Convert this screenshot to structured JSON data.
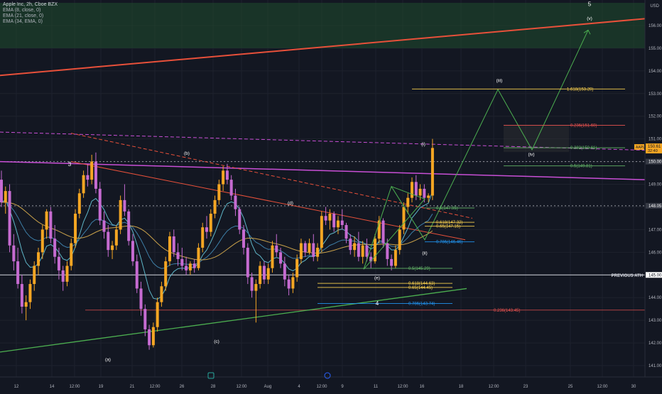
{
  "legend": {
    "symbol": "Apple Inc, 2h, Cboe BZX",
    "indicators": [
      "EMA (8, close, 0)",
      "EMA (21, close, 0)",
      "EMA (34, EMA, 0)"
    ]
  },
  "currency": "USD",
  "colors": {
    "background": "#131722",
    "up": "#f5a623",
    "down": "#c66bd1",
    "ema8": "#5fb7c9",
    "ema21": "#3e7fa8",
    "ema34": "#c9a14a",
    "resistance": "#e8503a",
    "uptrend": "#4caf50",
    "purple_line": "#c94fd6",
    "projection": "#4caf50",
    "fib_gold": "#ffd54f",
    "fib_green": "#66bb6a",
    "fib_blue": "#2196f3",
    "fib_red": "#ef5350",
    "price_badge": "#f5a623"
  },
  "chart_data": {
    "type": "candlestick",
    "symbol": "AAPL",
    "interval": "2h",
    "ylim": [
      140.5,
      157.0
    ],
    "y_ticks": [
      "141.00",
      "142.00",
      "143.00",
      "144.00",
      "145.00",
      "146.00",
      "147.00",
      "148.00",
      "149.00",
      "150.00",
      "151.00",
      "152.00",
      "153.00",
      "154.00",
      "155.00",
      "156.00"
    ],
    "x_ticks": [
      "12",
      "14",
      "12:00",
      "19",
      "21",
      "12:00",
      "26",
      "28",
      "12:00",
      "Aug",
      "4",
      "12:00",
      "9",
      "11",
      "12:00",
      "16",
      "18",
      "12:00",
      "23",
      "25",
      "12:00",
      "30"
    ],
    "price_labels": [
      {
        "text": "150.00",
        "value": 150.0
      },
      {
        "text": "148.05",
        "value": 148.05
      },
      {
        "text": "145.00",
        "value": 145.0
      }
    ],
    "current_price": {
      "symbol": "AAPL",
      "price": "150.61",
      "countdown": "32:40"
    },
    "wave_labels": [
      "3",
      "(a)",
      "(b)",
      "(c)",
      "(d)",
      "(e)",
      "4",
      "(i)",
      "(ii)",
      "(iii)",
      "(iv)",
      "(v)",
      "5"
    ],
    "annotations": [
      "PREVIOUS ATH"
    ],
    "fib_levels": [
      {
        "label": "1.618(153.20)",
        "value": 153.2
      },
      {
        "label": "0.236(151.60)",
        "value": 151.6
      },
      {
        "label": "0.382(150.61)",
        "value": 150.61
      },
      {
        "label": "0.5(149.81)",
        "value": 149.81
      },
      {
        "label": "0.5(147.95)",
        "value": 147.95
      },
      {
        "label": "0.618(147.32)",
        "value": 147.32
      },
      {
        "label": "0.65(147.15)",
        "value": 147.15
      },
      {
        "label": "0.786(146.46)",
        "value": 146.46
      },
      {
        "label": "0.5(145.29)",
        "value": 145.29
      },
      {
        "label": "0.618(144.63)",
        "value": 144.63
      },
      {
        "label": "0.65(144.45)",
        "value": 144.45
      },
      {
        "label": "0.786(143.74)",
        "value": 143.74
      },
      {
        "label": "0.236(143.45)",
        "value": 143.45
      }
    ],
    "candles": [
      [
        149.2,
        149.6,
        148.0,
        148.2
      ],
      [
        148.2,
        148.9,
        147.7,
        148.7
      ],
      [
        148.7,
        149.0,
        146.0,
        146.3
      ],
      [
        146.3,
        146.8,
        145.2,
        145.6
      ],
      [
        145.6,
        146.2,
        144.4,
        144.6
      ],
      [
        144.6,
        145.0,
        143.3,
        143.6
      ],
      [
        143.6,
        144.1,
        143.0,
        143.8
      ],
      [
        143.8,
        144.8,
        143.5,
        144.6
      ],
      [
        144.6,
        145.6,
        144.3,
        145.4
      ],
      [
        145.4,
        146.2,
        145.0,
        146.0
      ],
      [
        146.0,
        147.2,
        145.7,
        147.0
      ],
      [
        147.0,
        147.9,
        146.6,
        147.8
      ],
      [
        147.8,
        148.0,
        146.4,
        146.6
      ],
      [
        146.6,
        147.2,
        145.5,
        145.8
      ],
      [
        145.8,
        146.2,
        144.8,
        145.2
      ],
      [
        145.2,
        145.4,
        144.3,
        144.7
      ],
      [
        144.7,
        145.6,
        144.5,
        145.4
      ],
      [
        145.4,
        146.6,
        145.2,
        146.4
      ],
      [
        146.4,
        147.9,
        146.2,
        147.7
      ],
      [
        147.7,
        148.8,
        147.5,
        148.6
      ],
      [
        148.6,
        149.6,
        148.4,
        149.4
      ],
      [
        149.4,
        149.9,
        148.9,
        149.2
      ],
      [
        149.2,
        150.3,
        149.0,
        150.0
      ],
      [
        150.0,
        150.4,
        148.6,
        148.8
      ],
      [
        148.8,
        149.1,
        147.2,
        147.4
      ],
      [
        147.4,
        147.8,
        146.6,
        146.9
      ],
      [
        146.9,
        147.2,
        145.8,
        146.1
      ],
      [
        146.1,
        146.5,
        145.7,
        146.3
      ],
      [
        146.3,
        147.2,
        146.1,
        147.0
      ],
      [
        147.0,
        148.5,
        146.8,
        148.3
      ],
      [
        148.3,
        149.0,
        147.6,
        147.8
      ],
      [
        147.8,
        147.9,
        146.3,
        146.5
      ],
      [
        146.5,
        146.8,
        145.4,
        145.6
      ],
      [
        145.6,
        145.9,
        144.2,
        144.4
      ],
      [
        144.4,
        144.7,
        143.2,
        143.5
      ],
      [
        143.5,
        143.7,
        142.3,
        142.6
      ],
      [
        142.6,
        142.8,
        141.7,
        141.9
      ],
      [
        141.9,
        142.9,
        141.8,
        142.7
      ],
      [
        142.7,
        144.0,
        142.5,
        143.8
      ],
      [
        143.8,
        144.7,
        143.6,
        144.5
      ],
      [
        144.5,
        145.8,
        144.3,
        145.6
      ],
      [
        145.6,
        146.9,
        145.4,
        146.7
      ],
      [
        146.7,
        147.0,
        145.8,
        146.0
      ],
      [
        146.0,
        146.4,
        145.4,
        145.7
      ],
      [
        145.7,
        146.2,
        145.2,
        145.4
      ],
      [
        145.4,
        145.8,
        145.0,
        145.2
      ],
      [
        145.2,
        145.6,
        145.0,
        145.5
      ],
      [
        145.5,
        145.7,
        145.1,
        145.3
      ],
      [
        145.3,
        146.4,
        145.2,
        146.2
      ],
      [
        146.2,
        147.3,
        146.0,
        147.1
      ],
      [
        147.1,
        147.6,
        146.6,
        146.9
      ],
      [
        146.9,
        147.9,
        146.7,
        147.7
      ],
      [
        147.7,
        148.5,
        147.5,
        148.3
      ],
      [
        148.3,
        149.2,
        148.1,
        149.0
      ],
      [
        149.0,
        149.8,
        148.7,
        149.6
      ],
      [
        149.6,
        149.9,
        149.0,
        149.2
      ],
      [
        149.2,
        149.4,
        148.3,
        148.5
      ],
      [
        148.5,
        148.8,
        147.6,
        147.9
      ],
      [
        147.9,
        148.0,
        146.8,
        147.0
      ],
      [
        147.0,
        147.2,
        145.9,
        146.2
      ],
      [
        146.2,
        146.4,
        144.6,
        144.9
      ],
      [
        144.9,
        145.1,
        144.0,
        144.3
      ],
      [
        144.3,
        144.8,
        142.9,
        144.6
      ],
      [
        144.6,
        145.6,
        144.4,
        145.4
      ],
      [
        145.4,
        145.6,
        144.6,
        144.8
      ],
      [
        144.8,
        145.5,
        144.6,
        145.3
      ],
      [
        145.3,
        146.5,
        145.1,
        146.3
      ],
      [
        146.3,
        146.8,
        145.8,
        146.0
      ],
      [
        146.0,
        146.2,
        145.3,
        145.5
      ],
      [
        145.5,
        145.8,
        144.5,
        144.8
      ],
      [
        144.8,
        145.0,
        144.1,
        144.4
      ],
      [
        144.4,
        145.1,
        144.2,
        144.9
      ],
      [
        144.9,
        145.9,
        144.7,
        145.7
      ],
      [
        145.7,
        146.6,
        145.5,
        146.4
      ],
      [
        146.4,
        146.5,
        145.8,
        146.0
      ],
      [
        146.0,
        146.6,
        145.9,
        146.4
      ],
      [
        146.4,
        146.8,
        145.6,
        145.8
      ],
      [
        145.8,
        146.4,
        145.6,
        146.2
      ],
      [
        146.2,
        147.8,
        146.0,
        147.6
      ],
      [
        147.6,
        148.0,
        147.2,
        147.4
      ],
      [
        147.4,
        147.9,
        147.0,
        147.7
      ],
      [
        147.7,
        147.8,
        146.9,
        147.1
      ],
      [
        147.1,
        147.6,
        146.8,
        147.4
      ],
      [
        147.4,
        147.9,
        147.0,
        147.2
      ],
      [
        147.2,
        147.3,
        146.4,
        146.6
      ],
      [
        146.6,
        146.8,
        145.9,
        146.1
      ],
      [
        146.1,
        146.7,
        145.8,
        146.4
      ],
      [
        146.4,
        146.9,
        145.6,
        145.8
      ],
      [
        145.8,
        146.5,
        145.5,
        146.3
      ],
      [
        146.3,
        146.6,
        145.6,
        145.8
      ],
      [
        145.8,
        146.0,
        145.3,
        145.6
      ],
      [
        145.6,
        146.8,
        145.5,
        146.6
      ],
      [
        146.6,
        147.6,
        146.4,
        147.4
      ],
      [
        147.4,
        147.5,
        146.2,
        146.4
      ],
      [
        146.4,
        146.6,
        145.4,
        145.7
      ],
      [
        145.7,
        145.9,
        145.2,
        145.4
      ],
      [
        145.4,
        146.3,
        145.3,
        146.1
      ],
      [
        146.1,
        147.2,
        145.9,
        147.0
      ],
      [
        147.0,
        148.2,
        146.8,
        148.0
      ],
      [
        148.0,
        148.6,
        147.7,
        148.4
      ],
      [
        148.4,
        149.3,
        148.2,
        149.1
      ],
      [
        149.1,
        149.4,
        148.3,
        148.5
      ],
      [
        148.5,
        149.0,
        148.3,
        148.8
      ],
      [
        148.8,
        149.0,
        148.2,
        148.4
      ],
      [
        148.4,
        148.6,
        148.2,
        148.5
      ],
      [
        148.5,
        151.0,
        148.3,
        150.6
      ]
    ]
  }
}
